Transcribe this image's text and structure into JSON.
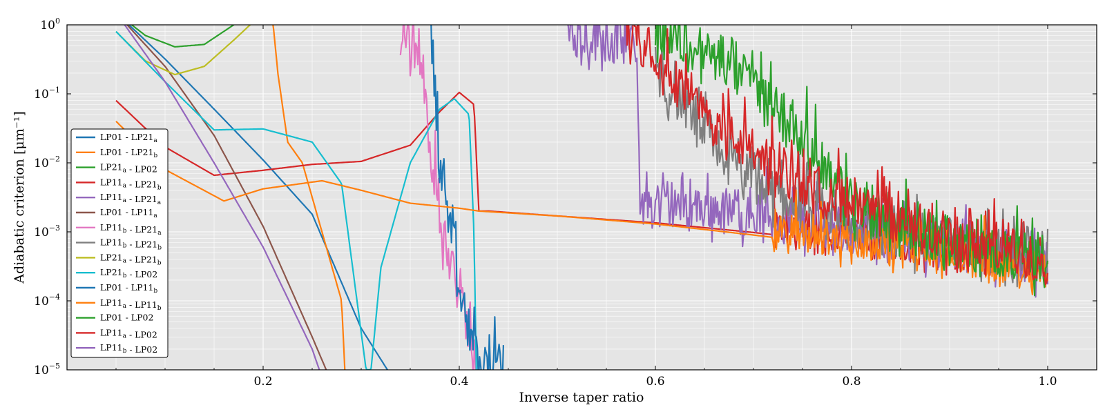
{
  "chart_data": {
    "type": "line",
    "title": "",
    "xlabel": "Inverse taper ratio",
    "ylabel": "Adiabatic criterion [μm⁻¹]",
    "xlim": [
      0.0,
      1.05
    ],
    "ylim": [
      1e-05,
      1
    ],
    "yscale": "log",
    "grid": true,
    "legend_position": "lower-left",
    "x_ticks": [
      {
        "value": 0.2,
        "label": "0.2"
      },
      {
        "value": 0.4,
        "label": "0.4"
      },
      {
        "value": 0.6,
        "label": "0.6"
      },
      {
        "value": 0.8,
        "label": "0.8"
      },
      {
        "value": 1.0,
        "label": "1.0"
      }
    ],
    "y_ticks": [
      {
        "value": 1,
        "label": "10",
        "exp": "0"
      },
      {
        "value": 0.1,
        "label": "10",
        "exp": "−1"
      },
      {
        "value": 0.01,
        "label": "10",
        "exp": "−2"
      },
      {
        "value": 0.001,
        "label": "10",
        "exp": "−3"
      },
      {
        "value": 0.0001,
        "label": "10",
        "exp": "−4"
      },
      {
        "value": 1e-05,
        "label": "10",
        "exp": "−5"
      }
    ],
    "series": [
      {
        "name": "LP01 - LP21a",
        "color": "#1f77b4",
        "type": "smooth",
        "x": [
          0.05,
          0.1,
          0.15,
          0.2,
          0.25,
          0.3,
          0.35
        ],
        "y": [
          1.5,
          0.32,
          0.06,
          0.011,
          0.0018,
          4e-05,
          3e-06
        ]
      },
      {
        "name": "LP01 - LP21b",
        "color": "#ff7f0e",
        "type": "mixed",
        "x": [
          0.05,
          0.1,
          0.15,
          0.21,
          0.215,
          0.225,
          0.24,
          0.26,
          0.28,
          0.285
        ],
        "y": [
          1.5,
          1.3,
          1.2,
          1.1,
          0.2,
          0.02,
          0.01,
          0.001,
          0.0001,
          3e-06
        ]
      },
      {
        "name": "LP21a - LP02",
        "color": "#2ca02c",
        "type": "smooth",
        "x": [
          0.05,
          0.08,
          0.11,
          0.14,
          0.17,
          0.2
        ],
        "y": [
          1.5,
          0.7,
          0.48,
          0.52,
          1.0,
          2.0
        ]
      },
      {
        "name": "LP11a - LP21b",
        "color": "#d62728",
        "type": "mixed",
        "x": [
          0.05,
          0.1,
          0.15,
          0.2,
          0.25,
          0.3,
          0.35,
          0.38,
          0.4,
          0.415,
          0.42,
          0.43,
          0.5,
          0.6,
          0.7,
          0.8,
          0.9,
          1.0
        ],
        "y": [
          0.08,
          0.017,
          0.0066,
          0.0078,
          0.0095,
          0.0105,
          0.018,
          0.055,
          0.105,
          0.07,
          0.002,
          0.002,
          0.0017,
          0.00135,
          0.00098,
          0.00068,
          0.00045,
          0.0003
        ]
      },
      {
        "name": "LP11a - LP21a",
        "color": "#9467bd",
        "type": "noisy",
        "x": [
          0.51,
          0.58,
          0.585,
          0.6,
          0.65,
          0.7,
          0.8,
          0.9,
          1.0
        ],
        "y": [
          0.6,
          0.4,
          0.002,
          0.002,
          0.0018,
          0.0014,
          0.0008,
          0.0005,
          0.0003
        ]
      },
      {
        "name": "LP01 - LP11a",
        "color": "#8c564b",
        "type": "smooth",
        "x": [
          0.05,
          0.1,
          0.15,
          0.2,
          0.25,
          0.28
        ],
        "y": [
          1.5,
          0.25,
          0.025,
          0.0012,
          3e-05,
          3e-06
        ]
      },
      {
        "name": "LP11b - LP21a",
        "color": "#e377c2",
        "type": "noisy",
        "x": [
          0.34,
          0.36,
          0.37,
          0.38,
          0.4,
          0.41,
          0.42
        ],
        "y": [
          0.5,
          0.3,
          0.02,
          0.001,
          0.0001,
          3e-05,
          3e-06
        ]
      },
      {
        "name": "LP11b - LP21b",
        "color": "#7f7f7f",
        "type": "noisy",
        "x": [
          0.6,
          0.65,
          0.7,
          0.8,
          0.9,
          1.0
        ],
        "y": [
          0.2,
          0.02,
          0.004,
          0.001,
          0.0006,
          0.0003
        ]
      },
      {
        "name": "LP21a - LP21b",
        "color": "#bcbd22",
        "type": "smooth",
        "x": [
          0.05,
          0.08,
          0.11,
          0.14,
          0.17,
          0.2
        ],
        "y": [
          0.8,
          0.3,
          0.19,
          0.25,
          0.6,
          1.5
        ]
      },
      {
        "name": "LP21b - LP02",
        "color": "#17becf",
        "type": "smooth",
        "x": [
          0.05,
          0.1,
          0.15,
          0.2,
          0.25,
          0.28,
          0.305,
          0.31,
          0.32,
          0.35,
          0.38,
          0.395,
          0.41,
          0.415,
          0.418
        ],
        "y": [
          0.8,
          0.15,
          0.03,
          0.031,
          0.02,
          0.005,
          1e-05,
          1e-05,
          0.0003,
          0.01,
          0.06,
          0.085,
          0.05,
          0.001,
          3e-06
        ]
      },
      {
        "name": "LP01 - LP11b",
        "color": "#1f77b4",
        "type": "noisy",
        "x": [
          0.37,
          0.38,
          0.39,
          0.4,
          0.41,
          0.42,
          0.43,
          0.445
        ],
        "y": [
          1.0,
          0.01,
          0.001,
          0.0001,
          3e-05,
          1e-05,
          1e-05,
          1e-05
        ]
      },
      {
        "name": "LP11a - LP11b",
        "color": "#ff7f0e",
        "type": "mixed",
        "x": [
          0.05,
          0.1,
          0.16,
          0.2,
          0.26,
          0.3,
          0.35,
          0.4,
          0.42,
          0.5,
          0.6,
          0.7,
          0.8,
          0.9,
          1.0
        ],
        "y": [
          0.04,
          0.008,
          0.0028,
          0.0042,
          0.0055,
          0.004,
          0.0026,
          0.0022,
          0.002,
          0.0017,
          0.0013,
          0.0009,
          0.0006,
          0.00038,
          0.00022
        ]
      },
      {
        "name": "LP01 - LP02",
        "color": "#2ca02c",
        "type": "noisy",
        "x": [
          0.6,
          0.65,
          0.7,
          0.75,
          0.8,
          0.9,
          1.0
        ],
        "y": [
          0.7,
          0.3,
          0.12,
          0.02,
          0.002,
          0.0005,
          0.0003
        ]
      },
      {
        "name": "LP11a - LP02",
        "color": "#d62728",
        "type": "noisy",
        "x": [
          0.57,
          0.6,
          0.65,
          0.7,
          0.8,
          0.9,
          1.0
        ],
        "y": [
          0.8,
          0.3,
          0.04,
          0.01,
          0.002,
          0.0006,
          0.0003
        ]
      },
      {
        "name": "LP11b - LP02",
        "color": "#9467bd",
        "type": "smooth",
        "x": [
          0.05,
          0.1,
          0.15,
          0.2,
          0.25,
          0.27
        ],
        "y": [
          1.5,
          0.15,
          0.01,
          0.0006,
          2e-05,
          3e-06
        ]
      }
    ]
  },
  "legend": [
    {
      "base": "LP01 - LP21",
      "sub": "a",
      "tail": ""
    },
    {
      "base": "LP01 - LP21",
      "sub": "b",
      "tail": ""
    },
    {
      "base": "LP21",
      "sub": "a",
      "tail": " - LP02"
    },
    {
      "base": "LP11",
      "sub": "a",
      "tail": " - LP21",
      "sub2": "b"
    },
    {
      "base": "LP11",
      "sub": "a",
      "tail": " - LP21",
      "sub2": "a"
    },
    {
      "base": "LP01 - LP11",
      "sub": "a",
      "tail": ""
    },
    {
      "base": "LP11",
      "sub": "b",
      "tail": " - LP21",
      "sub2": "a"
    },
    {
      "base": "LP11",
      "sub": "b",
      "tail": " - LP21",
      "sub2": "b"
    },
    {
      "base": "LP21",
      "sub": "a",
      "tail": " - LP21",
      "sub2": "b"
    },
    {
      "base": "LP21",
      "sub": "b",
      "tail": " - LP02"
    },
    {
      "base": "LP01 - LP11",
      "sub": "b",
      "tail": ""
    },
    {
      "base": "LP11",
      "sub": "a",
      "tail": " - LP11",
      "sub2": "b"
    },
    {
      "base": "LP01 - LP02",
      "sub": "",
      "tail": ""
    },
    {
      "base": "LP11",
      "sub": "a",
      "tail": " - LP02"
    },
    {
      "base": "LP11",
      "sub": "b",
      "tail": " - LP02"
    }
  ]
}
